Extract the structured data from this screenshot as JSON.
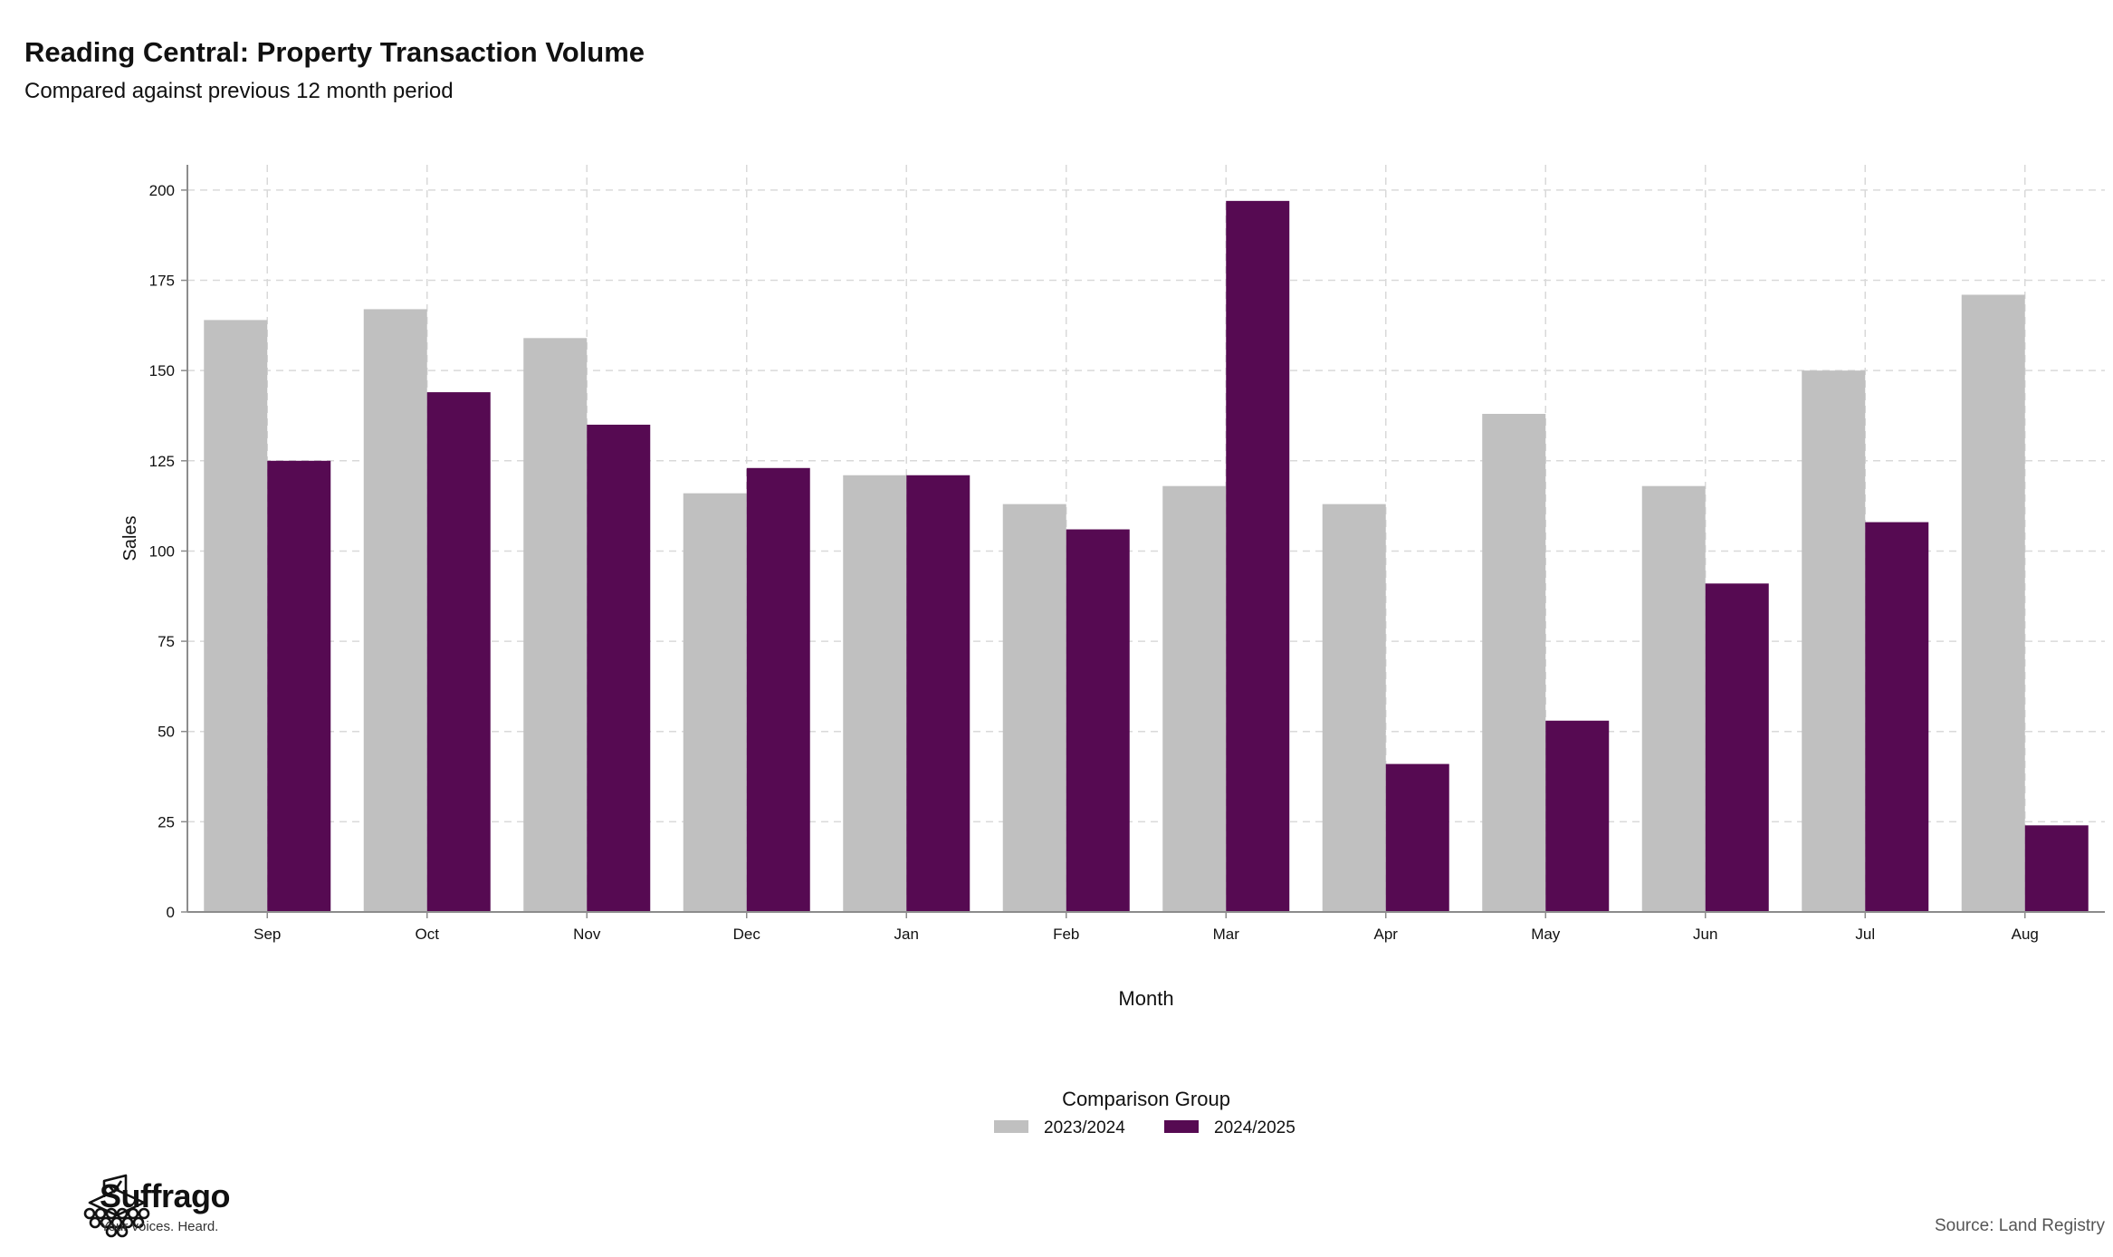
{
  "title": "Reading Central: Property Transaction Volume",
  "subtitle": "Compared against previous 12 month period",
  "source": "Source: Land Registry",
  "brand": {
    "name": "Suffrago",
    "tagline": "Your voices. Heard."
  },
  "colors": {
    "series1": "#c0c0c0",
    "series2": "#560a52",
    "grid": "#d9d9d9",
    "axis": "#8c8c8c"
  },
  "chart_data": {
    "type": "bar",
    "xlabel": "Month",
    "ylabel": "Sales",
    "ylim": [
      0,
      207
    ],
    "yticks": [
      0,
      25,
      50,
      75,
      100,
      125,
      150,
      175,
      200
    ],
    "grid": true,
    "legend_title": "Comparison Group",
    "legend_position": "bottom",
    "categories": [
      "Sep",
      "Oct",
      "Nov",
      "Dec",
      "Jan",
      "Feb",
      "Mar",
      "Apr",
      "May",
      "Jun",
      "Jul",
      "Aug"
    ],
    "series": [
      {
        "name": "2023/2024",
        "values": [
          164,
          167,
          159,
          116,
          121,
          113,
          118,
          113,
          138,
          118,
          150,
          171
        ]
      },
      {
        "name": "2024/2025",
        "values": [
          125,
          144,
          135,
          123,
          121,
          106,
          197,
          41,
          53,
          91,
          108,
          24
        ]
      }
    ]
  }
}
